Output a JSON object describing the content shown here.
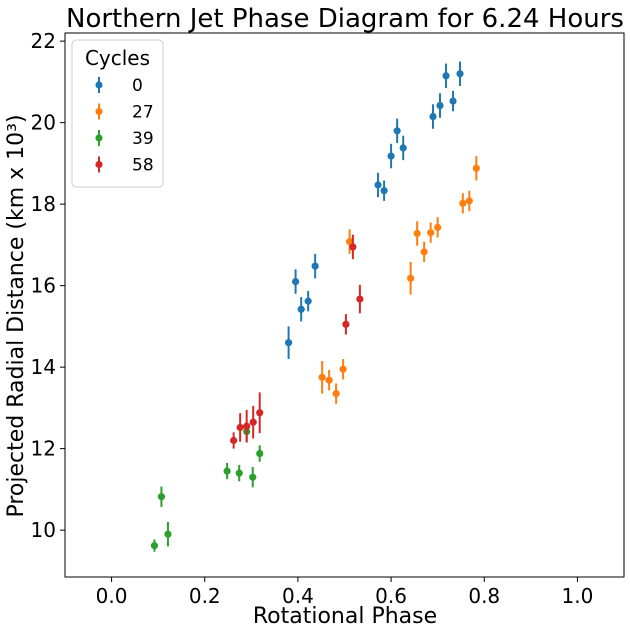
{
  "chart_data": {
    "type": "scatter",
    "title": "Northern Jet Phase Diagram for 6.24 Hours",
    "xlabel": "Rotational Phase",
    "ylabel": "Projected Radial Distance (km x 10³)",
    "xlim": [
      -0.1,
      1.1
    ],
    "ylim": [
      8.85,
      22.2
    ],
    "xticks": [
      0.0,
      0.2,
      0.4,
      0.6,
      0.8,
      1.0
    ],
    "xtick_labels": [
      "0.0",
      "0.2",
      "0.4",
      "0.6",
      "0.8",
      "1.0"
    ],
    "yticks": [
      10,
      12,
      14,
      16,
      18,
      20,
      22
    ],
    "ytick_labels": [
      "10",
      "12",
      "14",
      "16",
      "18",
      "20",
      "22"
    ],
    "grid": false,
    "legend": {
      "title": "Cycles",
      "position": "top-left"
    },
    "series": [
      {
        "name": "0",
        "color": "#1f77b4",
        "points": [
          {
            "x": 0.38,
            "y": 14.6,
            "err": 0.4
          },
          {
            "x": 0.395,
            "y": 16.1,
            "err": 0.3
          },
          {
            "x": 0.407,
            "y": 15.42,
            "err": 0.3
          },
          {
            "x": 0.422,
            "y": 15.62,
            "err": 0.25
          },
          {
            "x": 0.437,
            "y": 16.48,
            "err": 0.3
          },
          {
            "x": 0.572,
            "y": 18.47,
            "err": 0.3
          },
          {
            "x": 0.585,
            "y": 18.33,
            "err": 0.25
          },
          {
            "x": 0.6,
            "y": 19.18,
            "err": 0.3
          },
          {
            "x": 0.613,
            "y": 19.8,
            "err": 0.3
          },
          {
            "x": 0.626,
            "y": 19.38,
            "err": 0.3
          },
          {
            "x": 0.69,
            "y": 20.15,
            "err": 0.3
          },
          {
            "x": 0.705,
            "y": 20.42,
            "err": 0.3
          },
          {
            "x": 0.718,
            "y": 21.15,
            "err": 0.3
          },
          {
            "x": 0.733,
            "y": 20.53,
            "err": 0.25
          },
          {
            "x": 0.748,
            "y": 21.2,
            "err": 0.3
          }
        ]
      },
      {
        "name": "27",
        "color": "#ff7f0e",
        "points": [
          {
            "x": 0.452,
            "y": 13.75,
            "err": 0.4
          },
          {
            "x": 0.467,
            "y": 13.68,
            "err": 0.25
          },
          {
            "x": 0.482,
            "y": 13.35,
            "err": 0.25
          },
          {
            "x": 0.497,
            "y": 13.95,
            "err": 0.25
          },
          {
            "x": 0.511,
            "y": 17.08,
            "err": 0.3
          },
          {
            "x": 0.642,
            "y": 16.18,
            "err": 0.4
          },
          {
            "x": 0.656,
            "y": 17.28,
            "err": 0.3
          },
          {
            "x": 0.671,
            "y": 16.83,
            "err": 0.25
          },
          {
            "x": 0.685,
            "y": 17.3,
            "err": 0.25
          },
          {
            "x": 0.7,
            "y": 17.43,
            "err": 0.25
          },
          {
            "x": 0.754,
            "y": 18.02,
            "err": 0.25
          },
          {
            "x": 0.768,
            "y": 18.08,
            "err": 0.25
          },
          {
            "x": 0.783,
            "y": 18.88,
            "err": 0.3
          }
        ]
      },
      {
        "name": "39",
        "color": "#2ca02c",
        "points": [
          {
            "x": 0.092,
            "y": 9.62,
            "err": 0.15
          },
          {
            "x": 0.107,
            "y": 10.82,
            "err": 0.25
          },
          {
            "x": 0.121,
            "y": 9.9,
            "err": 0.3
          },
          {
            "x": 0.248,
            "y": 11.45,
            "err": 0.2
          },
          {
            "x": 0.274,
            "y": 11.4,
            "err": 0.2
          },
          {
            "x": 0.29,
            "y": 12.42,
            "err": 0.25
          },
          {
            "x": 0.303,
            "y": 11.3,
            "err": 0.25
          },
          {
            "x": 0.318,
            "y": 11.88,
            "err": 0.2
          }
        ]
      },
      {
        "name": "58",
        "color": "#d62728",
        "points": [
          {
            "x": 0.262,
            "y": 12.2,
            "err": 0.2
          },
          {
            "x": 0.276,
            "y": 12.52,
            "err": 0.35
          },
          {
            "x": 0.29,
            "y": 12.55,
            "err": 0.4
          },
          {
            "x": 0.304,
            "y": 12.65,
            "err": 0.4
          },
          {
            "x": 0.318,
            "y": 12.88,
            "err": 0.5
          },
          {
            "x": 0.503,
            "y": 15.05,
            "err": 0.25
          },
          {
            "x": 0.518,
            "y": 16.95,
            "err": 0.3
          },
          {
            "x": 0.533,
            "y": 15.67,
            "err": 0.35
          }
        ]
      }
    ]
  }
}
